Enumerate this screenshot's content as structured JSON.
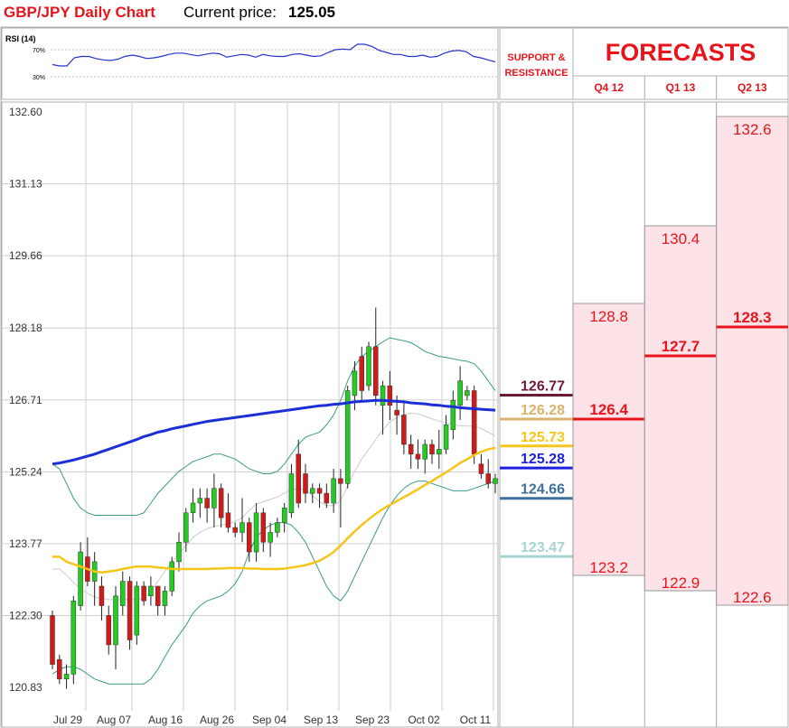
{
  "header": {
    "title": "GBP/JPY Daily Chart",
    "price_label": "Current price:",
    "price_value": "125.05"
  },
  "colors": {
    "title": "#e8141b",
    "bull": "#22cc22",
    "bear": "#d21a1a",
    "ma_fast": "#1c2fd6",
    "ma_slow": "#f5c518",
    "bollinger": "#3a9a8a",
    "rsi": "#2233cc",
    "forecast_fill": "#fde3e8",
    "forecast_line": "#e8141b"
  },
  "chart_data": [
    {
      "type": "line",
      "name": "rsi-panel",
      "label": "RSI (14)",
      "levels": [
        "70%",
        "30%"
      ],
      "ylim": [
        0,
        100
      ],
      "values": [
        48,
        46,
        46,
        58,
        60,
        60,
        57,
        55,
        54,
        56,
        60,
        62,
        60,
        57,
        58,
        60,
        63,
        65,
        65,
        63,
        61,
        63,
        65,
        64,
        59,
        61,
        63,
        62,
        59,
        63,
        61,
        60,
        60,
        63,
        64,
        62,
        60,
        61,
        66,
        70,
        71,
        70,
        78,
        78,
        75,
        69,
        66,
        63,
        63,
        60,
        60,
        62,
        59,
        60,
        65,
        68,
        69,
        67,
        60,
        58,
        55,
        52
      ]
    },
    {
      "type": "candlestick",
      "name": "price-panel",
      "y_ticks": [
        "132.60",
        "131.13",
        "129.66",
        "128.18",
        "126.71",
        "125.24",
        "123.77",
        "122.30",
        "120.83"
      ],
      "ylim": [
        120.5,
        132.8
      ],
      "x_ticks": [
        "Jul 29",
        "Aug 07",
        "Aug 16",
        "Aug 26",
        "Sep 04",
        "Sep 13",
        "Sep 23",
        "Oct 02",
        "Oct 11"
      ],
      "candles": [
        {
          "o": 122.3,
          "h": 122.4,
          "l": 121.2,
          "c": 121.3
        },
        {
          "o": 121.4,
          "h": 121.5,
          "l": 120.9,
          "c": 121.0
        },
        {
          "o": 121.0,
          "h": 121.3,
          "l": 120.8,
          "c": 121.1
        },
        {
          "o": 121.1,
          "h": 122.7,
          "l": 120.9,
          "c": 122.6
        },
        {
          "o": 122.5,
          "h": 123.8,
          "l": 122.4,
          "c": 123.6
        },
        {
          "o": 123.5,
          "h": 123.9,
          "l": 122.9,
          "c": 123.0
        },
        {
          "o": 123.0,
          "h": 123.6,
          "l": 122.5,
          "c": 123.4
        },
        {
          "o": 122.9,
          "h": 123.1,
          "l": 122.2,
          "c": 122.5
        },
        {
          "o": 122.3,
          "h": 122.5,
          "l": 121.5,
          "c": 121.7
        },
        {
          "o": 121.7,
          "h": 122.9,
          "l": 121.2,
          "c": 122.7
        },
        {
          "o": 122.5,
          "h": 123.2,
          "l": 122.3,
          "c": 123.0
        },
        {
          "o": 123.0,
          "h": 123.1,
          "l": 121.6,
          "c": 121.8
        },
        {
          "o": 121.9,
          "h": 123.0,
          "l": 121.7,
          "c": 122.9
        },
        {
          "o": 122.9,
          "h": 123.0,
          "l": 122.5,
          "c": 122.6
        },
        {
          "o": 122.7,
          "h": 123.1,
          "l": 122.5,
          "c": 122.9
        },
        {
          "o": 122.9,
          "h": 122.9,
          "l": 122.3,
          "c": 122.5
        },
        {
          "o": 122.5,
          "h": 122.9,
          "l": 122.3,
          "c": 122.8
        },
        {
          "o": 122.8,
          "h": 123.5,
          "l": 122.7,
          "c": 123.4
        },
        {
          "o": 123.4,
          "h": 124.0,
          "l": 123.2,
          "c": 123.8
        },
        {
          "o": 123.8,
          "h": 124.5,
          "l": 123.6,
          "c": 124.4
        },
        {
          "o": 124.4,
          "h": 124.9,
          "l": 124.2,
          "c": 124.6
        },
        {
          "o": 124.6,
          "h": 124.9,
          "l": 124.3,
          "c": 124.7
        },
        {
          "o": 124.7,
          "h": 124.9,
          "l": 124.2,
          "c": 124.5
        },
        {
          "o": 124.5,
          "h": 125.2,
          "l": 124.1,
          "c": 124.9
        },
        {
          "o": 124.9,
          "h": 125.0,
          "l": 124.1,
          "c": 124.3
        },
        {
          "o": 124.4,
          "h": 124.8,
          "l": 124.0,
          "c": 124.1
        },
        {
          "o": 124.1,
          "h": 124.2,
          "l": 123.9,
          "c": 124.0
        },
        {
          "o": 124.0,
          "h": 124.7,
          "l": 123.8,
          "c": 124.2
        },
        {
          "o": 124.2,
          "h": 124.3,
          "l": 123.4,
          "c": 123.6
        },
        {
          "o": 123.6,
          "h": 124.6,
          "l": 123.4,
          "c": 124.4
        },
        {
          "o": 124.4,
          "h": 124.5,
          "l": 123.6,
          "c": 123.8
        },
        {
          "o": 123.8,
          "h": 124.2,
          "l": 123.5,
          "c": 124.0
        },
        {
          "o": 124.0,
          "h": 124.3,
          "l": 123.9,
          "c": 124.2
        },
        {
          "o": 124.2,
          "h": 124.6,
          "l": 124.0,
          "c": 124.5
        },
        {
          "o": 124.4,
          "h": 125.4,
          "l": 124.3,
          "c": 125.2
        },
        {
          "o": 125.6,
          "h": 125.9,
          "l": 124.5,
          "c": 124.6
        },
        {
          "o": 125.2,
          "h": 125.4,
          "l": 124.6,
          "c": 124.8
        },
        {
          "o": 124.8,
          "h": 125.0,
          "l": 124.6,
          "c": 124.9
        },
        {
          "o": 124.9,
          "h": 125.0,
          "l": 124.5,
          "c": 124.8
        },
        {
          "o": 124.8,
          "h": 125.0,
          "l": 124.5,
          "c": 124.6
        },
        {
          "o": 124.6,
          "h": 125.3,
          "l": 124.4,
          "c": 125.1
        },
        {
          "o": 125.1,
          "h": 125.3,
          "l": 124.1,
          "c": 125.0
        },
        {
          "o": 125.0,
          "h": 127.0,
          "l": 124.9,
          "c": 126.9
        },
        {
          "o": 126.8,
          "h": 127.5,
          "l": 126.5,
          "c": 127.3
        },
        {
          "o": 127.6,
          "h": 127.8,
          "l": 126.7,
          "c": 126.9
        },
        {
          "o": 127.0,
          "h": 127.9,
          "l": 126.9,
          "c": 127.8
        },
        {
          "o": 127.8,
          "h": 128.6,
          "l": 126.6,
          "c": 126.8
        },
        {
          "o": 126.6,
          "h": 127.1,
          "l": 126.0,
          "c": 127.0
        },
        {
          "o": 127.0,
          "h": 127.3,
          "l": 126.3,
          "c": 126.6
        },
        {
          "o": 126.5,
          "h": 126.8,
          "l": 126.0,
          "c": 126.4
        },
        {
          "o": 126.4,
          "h": 126.7,
          "l": 125.6,
          "c": 125.8
        },
        {
          "o": 125.8,
          "h": 126.0,
          "l": 125.3,
          "c": 125.6
        },
        {
          "o": 125.6,
          "h": 125.9,
          "l": 125.3,
          "c": 125.5
        },
        {
          "o": 125.5,
          "h": 125.9,
          "l": 125.2,
          "c": 125.8
        },
        {
          "o": 125.8,
          "h": 125.9,
          "l": 125.4,
          "c": 125.6
        },
        {
          "o": 125.6,
          "h": 126.1,
          "l": 125.3,
          "c": 125.7
        },
        {
          "o": 125.7,
          "h": 126.4,
          "l": 125.6,
          "c": 126.2
        },
        {
          "o": 126.1,
          "h": 126.9,
          "l": 125.9,
          "c": 126.7
        },
        {
          "o": 126.6,
          "h": 127.4,
          "l": 126.3,
          "c": 127.1
        },
        {
          "o": 126.8,
          "h": 127.0,
          "l": 126.7,
          "c": 126.9
        },
        {
          "o": 126.9,
          "h": 127.0,
          "l": 125.4,
          "c": 125.6
        },
        {
          "o": 125.4,
          "h": 125.6,
          "l": 125.1,
          "c": 125.2
        },
        {
          "o": 125.2,
          "h": 125.5,
          "l": 124.9,
          "c": 125.0
        },
        {
          "o": 125.0,
          "h": 125.2,
          "l": 124.8,
          "c": 125.1
        }
      ],
      "ma_fast": [
        125.4,
        125.42,
        125.45,
        125.48,
        125.52,
        125.56,
        125.6,
        125.65,
        125.7,
        125.75,
        125.8,
        125.85,
        125.9,
        125.96,
        126.0,
        126.05,
        126.08,
        126.12,
        126.15,
        126.18,
        126.21,
        126.24,
        126.27,
        126.29,
        126.31,
        126.33,
        126.35,
        126.37,
        126.39,
        126.41,
        126.43,
        126.45,
        126.47,
        126.49,
        126.51,
        126.53,
        126.55,
        126.57,
        126.59,
        126.6,
        126.62,
        126.63,
        126.65,
        126.67,
        126.68,
        126.69,
        126.7,
        126.7,
        126.69,
        126.68,
        126.67,
        126.65,
        126.64,
        126.63,
        126.61,
        126.6,
        126.58,
        126.57,
        126.55,
        126.54,
        126.53,
        126.52,
        126.51,
        126.5
      ],
      "ma_slow": [
        123.5,
        123.5,
        123.4,
        123.35,
        123.3,
        123.25,
        123.2,
        123.18,
        123.2,
        123.22,
        123.25,
        123.28,
        123.3,
        123.3,
        123.3,
        123.28,
        123.27,
        123.25,
        123.25,
        123.25,
        123.25,
        123.25,
        123.25,
        123.26,
        123.26,
        123.27,
        123.27,
        123.27,
        123.26,
        123.26,
        123.25,
        123.25,
        123.25,
        123.26,
        123.28,
        123.3,
        123.33,
        123.37,
        123.42,
        123.5,
        123.6,
        123.73,
        123.88,
        124.02,
        124.15,
        124.27,
        124.38,
        124.48,
        124.56,
        124.64,
        124.72,
        124.8,
        124.88,
        124.97,
        125.05,
        125.14,
        125.23,
        125.32,
        125.42,
        125.5,
        125.58,
        125.65,
        125.7,
        125.73
      ],
      "bb_upper": [
        125.4,
        125.3,
        125.0,
        124.7,
        124.5,
        124.4,
        124.35,
        124.35,
        124.35,
        124.35,
        124.35,
        124.35,
        124.35,
        124.4,
        124.6,
        124.8,
        124.95,
        125.1,
        125.25,
        125.35,
        125.45,
        125.5,
        125.55,
        125.6,
        125.6,
        125.55,
        125.5,
        125.4,
        125.3,
        125.25,
        125.2,
        125.2,
        125.25,
        125.4,
        125.6,
        125.8,
        125.95,
        126.0,
        126.05,
        126.2,
        126.4,
        126.7,
        127.1,
        127.4,
        127.6,
        127.7,
        127.8,
        127.9,
        127.98,
        127.95,
        127.92,
        127.88,
        127.8,
        127.7,
        127.65,
        127.6,
        127.58,
        127.55,
        127.52,
        127.5,
        127.45,
        127.3,
        127.1,
        126.9
      ],
      "bb_lower": [
        121.1,
        121.2,
        121.25,
        121.25,
        121.2,
        121.1,
        121.0,
        120.95,
        120.9,
        120.9,
        120.9,
        120.9,
        120.9,
        120.9,
        121.0,
        121.2,
        121.45,
        121.7,
        121.9,
        122.1,
        122.35,
        122.5,
        122.6,
        122.65,
        122.7,
        122.8,
        122.95,
        123.2,
        123.6,
        123.9,
        124.05,
        124.15,
        124.2,
        124.2,
        124.15,
        124.0,
        123.8,
        123.5,
        123.2,
        122.9,
        122.7,
        122.6,
        122.8,
        123.1,
        123.4,
        123.7,
        124.0,
        124.3,
        124.55,
        124.75,
        124.9,
        125.0,
        125.05,
        125.05,
        125.0,
        124.95,
        124.9,
        124.85,
        124.85,
        124.85,
        124.9,
        124.95,
        125.0,
        125.05
      ]
    },
    {
      "type": "table",
      "name": "support-resistance",
      "header": "SUPPORT & RESISTANCE",
      "levels": [
        {
          "value": "126.77",
          "color": "#6b1a3a"
        },
        {
          "value": "126.28",
          "color": "#d9b36e"
        },
        {
          "value": "125.73",
          "color": "#f5c518"
        },
        {
          "value": "125.28",
          "color": "#1c1ee0"
        },
        {
          "value": "124.66",
          "color": "#3f6f9a"
        },
        {
          "value": "123.47",
          "color": "#a8d3d3"
        }
      ]
    },
    {
      "type": "table",
      "name": "forecasts",
      "title": "FORECASTS",
      "periods": [
        {
          "label": "Q4 12",
          "high": "128.8",
          "mid": "126.4",
          "low": "123.2"
        },
        {
          "label": "Q1 13",
          "high": "130.4",
          "mid": "127.7",
          "low": "122.9"
        },
        {
          "label": "Q2 13",
          "high": "132.6",
          "mid": "128.3",
          "low": "122.6"
        }
      ]
    }
  ]
}
